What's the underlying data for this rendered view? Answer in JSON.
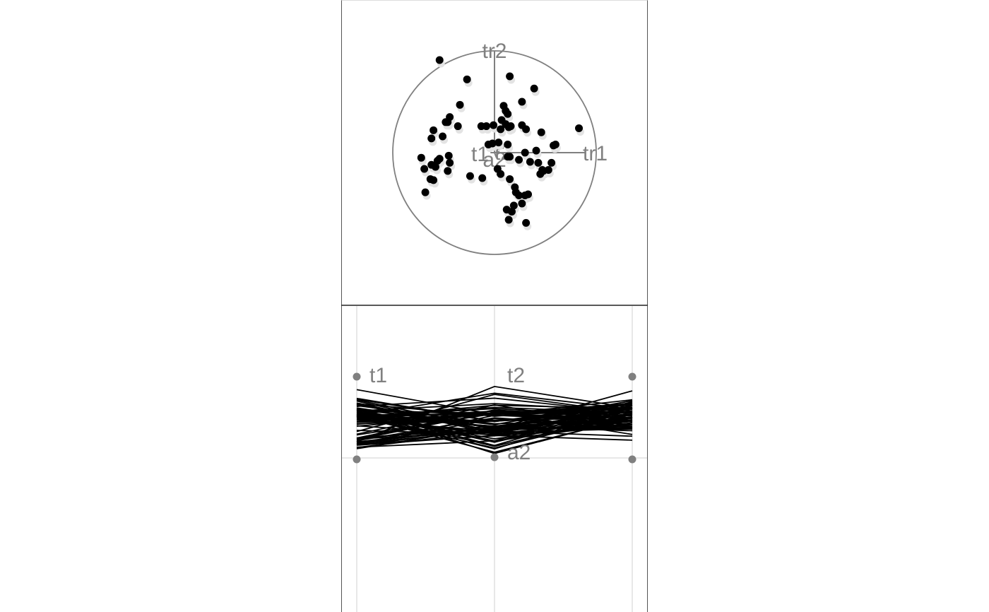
{
  "colors": {
    "points": "#000000",
    "ghost_points": "#e3e3e3",
    "axes": "#808080",
    "grid": "#e0e0e0",
    "divider": "#222222"
  },
  "chart_data": [
    {
      "type": "scatter",
      "subtype": "tour-projection",
      "axis_labels": [
        "tr1",
        "tr2",
        "a2",
        "t2",
        "t1"
      ],
      "unit_circle": true,
      "x": [
        -0.54,
        -0.27,
        0.15,
        0.39,
        0.27,
        0.09,
        0.11,
        0.13,
        0.07,
        -0.34,
        -0.46,
        -0.48,
        -0.6,
        -0.62,
        -0.51,
        -0.44,
        -0.36,
        -0.62,
        -0.54,
        -0.58,
        -0.69,
        -0.63,
        -0.56,
        -0.45,
        -0.44,
        -0.46,
        -0.68,
        -0.6,
        -0.72,
        -0.13,
        -0.08,
        -0.01,
        0.06,
        0.14,
        0.11,
        0.16,
        0.27,
        0.31,
        0.46,
        0.83,
        0.58,
        0.6,
        0.41,
        0.3,
        0.13,
        0.15,
        0.24,
        0.35,
        0.43,
        0.47,
        0.53,
        0.45,
        0.48,
        0.56,
        0.06,
        0.03,
        -0.02,
        -0.06,
        0.13,
        0.04,
        -0.12,
        -0.24,
        0.15,
        0.2,
        0.21,
        0.24,
        0.3,
        0.33,
        0.17,
        0.27,
        0.12,
        0.19,
        0.14,
        0.31
      ],
      "y": [
        0.91,
        0.72,
        0.75,
        0.63,
        0.5,
        0.46,
        0.41,
        0.38,
        0.32,
        0.47,
        0.3,
        0.3,
        0.22,
        0.14,
        0.16,
        0.35,
        0.26,
        -0.12,
        -0.06,
        -0.14,
        -0.16,
        -0.26,
        -0.08,
        -0.03,
        -0.1,
        -0.18,
        -0.39,
        -0.27,
        -0.05,
        0.26,
        0.26,
        0.27,
        0.23,
        0.25,
        0.28,
        0.26,
        0.27,
        0.23,
        0.2,
        0.24,
        0.07,
        0.08,
        0.02,
        0.0,
        -0.04,
        -0.04,
        -0.07,
        -0.09,
        -0.1,
        -0.17,
        -0.17,
        -0.21,
        -0.18,
        -0.1,
        -0.21,
        -0.16,
        0.09,
        0.08,
        0.08,
        0.1,
        -0.25,
        -0.23,
        -0.26,
        -0.34,
        -0.39,
        -0.42,
        -0.42,
        -0.41,
        -0.58,
        -0.5,
        -0.56,
        -0.52,
        -0.66,
        -0.69
      ]
    },
    {
      "type": "line",
      "subtype": "parallel-coordinates",
      "categories": [
        "t1",
        "t2",
        "a2"
      ],
      "axis_labels": [
        "t1",
        "t2",
        "a2"
      ]
    }
  ]
}
